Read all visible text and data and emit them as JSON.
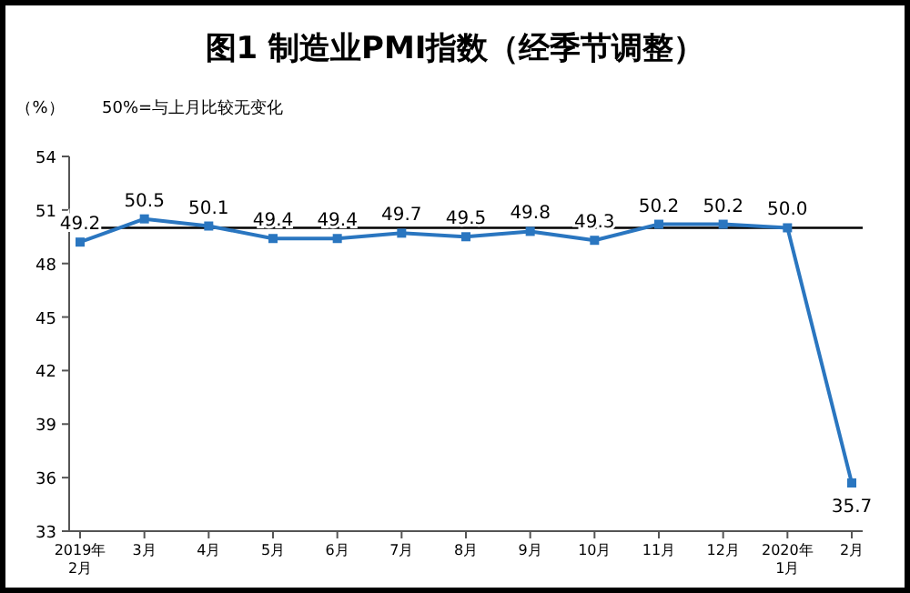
{
  "chart_data": {
    "type": "line",
    "title": "图1 制造业PMI指数（经季节调整）",
    "ylabel": "（%）",
    "annotations": [
      "50%=与上月比较无变化"
    ],
    "categories": [
      "2019年\n2月",
      "3月",
      "4月",
      "5月",
      "6月",
      "7月",
      "8月",
      "9月",
      "10月",
      "11月",
      "12月",
      "2020年\n1月",
      "2月"
    ],
    "series": [
      {
        "color": "#2a76c0",
        "values": [
          49.2,
          50.5,
          50.1,
          49.4,
          49.4,
          49.7,
          49.5,
          49.8,
          49.3,
          50.2,
          50.2,
          50.0,
          35.7
        ],
        "value_labels": [
          "49.2",
          "50.5",
          "50.1",
          "49.4",
          "49.4",
          "49.7",
          "49.5",
          "49.8",
          "49.3",
          "50.2",
          "50.2",
          "50.0",
          "35.7"
        ]
      }
    ],
    "ylim": [
      33,
      54
    ],
    "yticks": [
      33,
      36,
      39,
      42,
      45,
      48,
      51,
      54
    ],
    "ref_lines": [
      {
        "axis": "y",
        "value": 50,
        "color": "#000000"
      }
    ],
    "marker": "square"
  }
}
